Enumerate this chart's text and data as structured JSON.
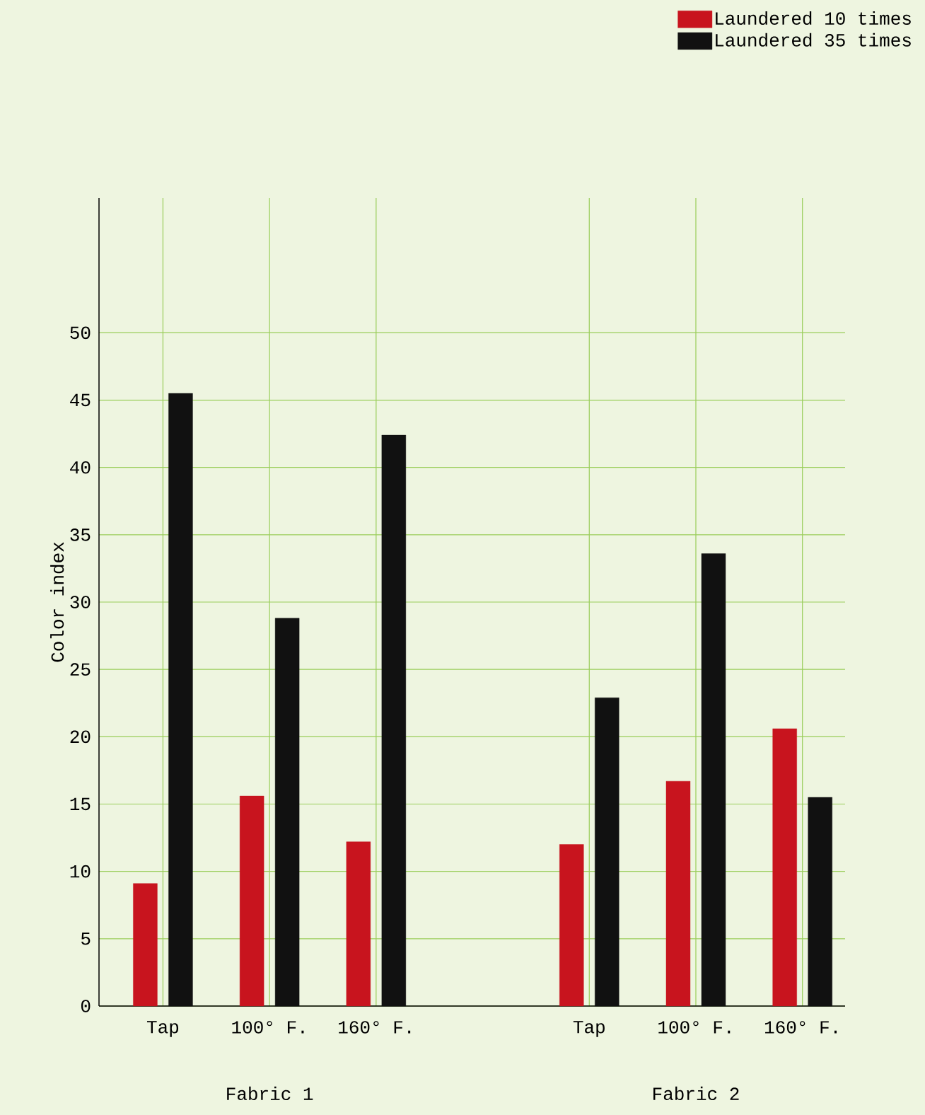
{
  "chart_data": {
    "type": "bar",
    "ylabel": "Color index",
    "categories": [
      "Tap",
      "100° F.",
      "160° F.",
      null,
      "Tap",
      "100° F.",
      "160° F."
    ],
    "series": [
      {
        "name": "Laundered 10 times",
        "color": "#c8141e",
        "values": [
          9.1,
          15.6,
          12.2,
          null,
          12.0,
          16.7,
          20.6
        ]
      },
      {
        "name": "Laundered 35 times",
        "color": "#111111",
        "values": [
          45.5,
          28.8,
          42.4,
          null,
          22.9,
          33.6,
          15.5
        ]
      }
    ],
    "ylim": [
      0,
      60
    ],
    "yticks": [
      0,
      5,
      10,
      15,
      20,
      25,
      30,
      35,
      40,
      45,
      50
    ],
    "annotations": [
      "Fabric 1",
      "Fabric 2"
    ],
    "grid": true,
    "legend": "top right"
  }
}
